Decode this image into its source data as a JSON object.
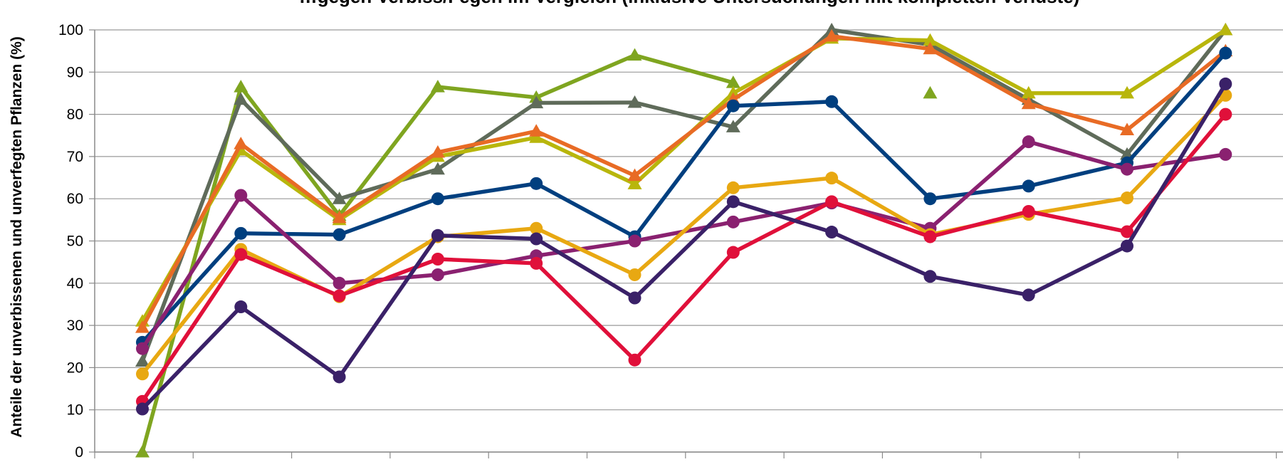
{
  "chart_data": {
    "type": "line",
    "title": "…gegen Verbiss/Fegen im Vergleich (inklusive Untersuchungen mit kompletten Verluste)",
    "xlabel": "",
    "ylabel": "Anteile der unverbissenen und unverfegten Pflanzen (%)",
    "ylim": [
      0,
      100
    ],
    "yticks": [
      "0",
      "10",
      "20",
      "30",
      "40",
      "50",
      "60",
      "70",
      "80",
      "90",
      "100"
    ],
    "grid": true,
    "legend": "none",
    "x": [
      1,
      2,
      3,
      4,
      5,
      6,
      7,
      8,
      9,
      10,
      11,
      12
    ],
    "series": [
      {
        "color": "#7FA520",
        "marker": "triangle",
        "connect_gaps": false,
        "values": [
          0,
          86.5,
          56,
          86.5,
          84,
          94,
          87.5,
          null,
          85,
          null,
          null,
          null
        ]
      },
      {
        "color": "#5F6B5A",
        "marker": "triangle",
        "connect_gaps": true,
        "values": [
          21.5,
          83.5,
          60,
          67,
          82.7,
          82.8,
          77,
          100,
          96.5,
          83.5,
          70.5,
          100
        ]
      },
      {
        "color": "#B8B60C",
        "marker": "triangle",
        "connect_gaps": true,
        "values": [
          31,
          71.5,
          55,
          70,
          74.5,
          63.5,
          85,
          98,
          97.5,
          85,
          85,
          100
        ]
      },
      {
        "color": "#E86B25",
        "marker": "triangle",
        "connect_gaps": true,
        "values": [
          29.5,
          73,
          55.5,
          71,
          76,
          65.5,
          83.5,
          98.5,
          95.5,
          82.5,
          76.3,
          95
        ]
      },
      {
        "color": "#003F7F",
        "marker": "circle",
        "connect_gaps": true,
        "values": [
          26,
          51.8,
          51.5,
          60,
          63.6,
          51,
          82,
          83,
          60,
          63,
          68.5,
          94.5
        ]
      },
      {
        "color": "#8A2170",
        "marker": "circle",
        "connect_gaps": true,
        "values": [
          24.5,
          60.8,
          40,
          42,
          46.5,
          50,
          54.5,
          59,
          53,
          73.5,
          67,
          70.5
        ]
      },
      {
        "color": "#E8A812",
        "marker": "circle",
        "connect_gaps": true,
        "values": [
          18.5,
          48,
          36.8,
          51,
          53,
          42,
          62.6,
          64.9,
          51.5,
          56.3,
          60.2,
          84.5
        ]
      },
      {
        "color": "#E0103A",
        "marker": "circle",
        "connect_gaps": true,
        "values": [
          12,
          46.8,
          37,
          45.7,
          44.7,
          21.8,
          47.3,
          59.3,
          51,
          57,
          52.2,
          80
        ]
      },
      {
        "color": "#3A2168",
        "marker": "circle",
        "connect_gaps": true,
        "values": [
          10.2,
          34.4,
          17.8,
          51.3,
          50.5,
          36.5,
          59.3,
          52.1,
          41.6,
          37.2,
          48.8,
          87.2
        ]
      }
    ]
  }
}
